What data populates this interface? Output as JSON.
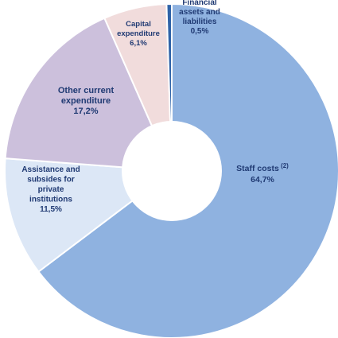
{
  "chart_data": {
    "type": "pie",
    "donut": true,
    "title": "",
    "start_angle_deg": 0,
    "direction": "clockwise",
    "slices": [
      {
        "lines": [
          "Staff costs"
        ],
        "superscript": "(2)",
        "pct_label": "64,7%",
        "value": 64.7,
        "color": "#8fb2e0",
        "text_color": "#203a73"
      },
      {
        "lines": [
          "Assistance and",
          "subsides for",
          "private",
          "institutions"
        ],
        "superscript": "",
        "pct_label": "11,5%",
        "value": 11.5,
        "color": "#dce7f6",
        "text_color": "#203a73"
      },
      {
        "lines": [
          "Other current",
          "expenditure"
        ],
        "superscript": "",
        "pct_label": "17,2%",
        "value": 17.2,
        "color": "#ccc0dc",
        "text_color": "#203a73"
      },
      {
        "lines": [
          "Capital",
          "expenditure"
        ],
        "superscript": "",
        "pct_label": "6,1%",
        "value": 6.1,
        "color": "#f1dcdc",
        "text_color": "#203a73"
      },
      {
        "lines": [
          "Financial",
          "assets and",
          "liabilities"
        ],
        "superscript": "",
        "pct_label": "0,5%",
        "value": 0.5,
        "color": "#2f63a8",
        "text_color": "#203a73"
      }
    ]
  }
}
